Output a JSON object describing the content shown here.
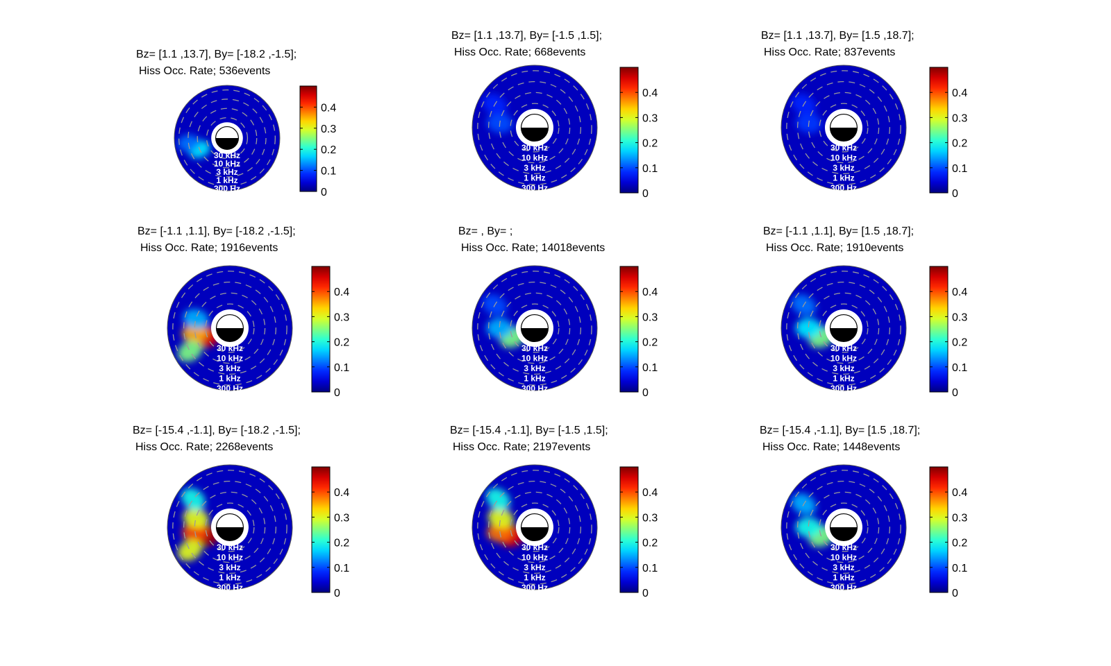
{
  "chart_data": [
    {
      "type": "heatmap",
      "title_line1": "Bz= [1.1 ,13.7], By= [-18.2 ,-1.5];",
      "title_line2": "Hiss Occ. Rate; 536events",
      "radial_labels": [
        "30 kHz",
        "10 kHz",
        "3 kHz",
        "1 kHz",
        "300 Hz"
      ],
      "colorbar": {
        "min": 0,
        "max": 0.5,
        "ticks": [
          "0",
          "0.1",
          "0.2",
          "0.3",
          "0.4"
        ],
        "colormap": "jet"
      },
      "hotspots": [
        {
          "mlt": 4.5,
          "ring": 2,
          "value": 0.18
        },
        {
          "mlt": 5.5,
          "ring": 3,
          "value": 0.12
        }
      ]
    },
    {
      "type": "heatmap",
      "title_line1": "Bz= [1.1 ,13.7], By= [-1.5 ,1.5];",
      "title_line2": "Hiss Occ. Rate; 668events",
      "radial_labels": [
        "30 kHz",
        "10 kHz",
        "3 kHz",
        "1 kHz",
        "300 Hz"
      ],
      "colorbar": {
        "min": 0,
        "max": 0.5,
        "ticks": [
          "0",
          "0.1",
          "0.2",
          "0.3",
          "0.4"
        ],
        "colormap": "jet"
      },
      "hotspots": [
        {
          "mlt": 6.5,
          "ring": 2,
          "value": 0.1
        },
        {
          "mlt": 8,
          "ring": 3,
          "value": 0.08
        }
      ]
    },
    {
      "type": "heatmap",
      "title_line1": "Bz= [1.1 ,13.7], By= [1.5 ,18.7];",
      "title_line2": "Hiss Occ. Rate; 837events",
      "radial_labels": [
        "30 kHz",
        "10 kHz",
        "3 kHz",
        "1 kHz",
        "300 Hz"
      ],
      "colorbar": {
        "min": 0,
        "max": 0.5,
        "ticks": [
          "0",
          "0.1",
          "0.2",
          "0.3",
          "0.4"
        ],
        "colormap": "jet"
      },
      "hotspots": [
        {
          "mlt": 6.5,
          "ring": 2,
          "value": 0.09
        },
        {
          "mlt": 8,
          "ring": 3,
          "value": 0.08
        }
      ]
    },
    {
      "type": "heatmap",
      "title_line1": "Bz= [-1.1 ,1.1], By= [-18.2 ,-1.5];",
      "title_line2": "Hiss Occ. Rate; 1916events",
      "radial_labels": [
        "30 kHz",
        "10 kHz",
        "3 kHz",
        "1 kHz",
        "300 Hz"
      ],
      "colorbar": {
        "min": 0,
        "max": 0.5,
        "ticks": [
          "0",
          "0.1",
          "0.2",
          "0.3",
          "0.4"
        ],
        "colormap": "jet"
      },
      "hotspots": [
        {
          "mlt": 4.5,
          "ring": 1,
          "value": 0.45
        },
        {
          "mlt": 5.5,
          "ring": 2,
          "value": 0.35
        },
        {
          "mlt": 4,
          "ring": 3,
          "value": 0.25
        },
        {
          "mlt": 7,
          "ring": 2,
          "value": 0.15
        }
      ]
    },
    {
      "type": "heatmap",
      "title_line1": "Bz= , By= ;",
      "title_line2": "Hiss Occ. Rate; 14018events",
      "radial_labels": [
        "30 kHz",
        "10 kHz",
        "3 kHz",
        "1 kHz",
        "300 Hz"
      ],
      "colorbar": {
        "min": 0,
        "max": 0.5,
        "ticks": [
          "0",
          "0.1",
          "0.2",
          "0.3",
          "0.4"
        ],
        "colormap": "jet"
      },
      "hotspots": [
        {
          "mlt": 4.5,
          "ring": 1,
          "value": 0.25
        },
        {
          "mlt": 6,
          "ring": 2,
          "value": 0.15
        },
        {
          "mlt": 8,
          "ring": 3,
          "value": 0.1
        }
      ]
    },
    {
      "type": "heatmap",
      "title_line1": "Bz= [-1.1 ,1.1], By= [1.5 ,18.7];",
      "title_line2": "Hiss Occ. Rate; 1910events",
      "radial_labels": [
        "30 kHz",
        "10 kHz",
        "3 kHz",
        "1 kHz",
        "300 Hz"
      ],
      "colorbar": {
        "min": 0,
        "max": 0.5,
        "ticks": [
          "0",
          "0.1",
          "0.2",
          "0.3",
          "0.4"
        ],
        "colormap": "jet"
      },
      "hotspots": [
        {
          "mlt": 4.5,
          "ring": 1,
          "value": 0.25
        },
        {
          "mlt": 6,
          "ring": 2,
          "value": 0.18
        },
        {
          "mlt": 8,
          "ring": 3,
          "value": 0.12
        }
      ]
    },
    {
      "type": "heatmap",
      "title_line1": "Bz= [-15.4 ,-1.1], By= [-18.2 ,-1.5];",
      "title_line2": "Hiss Occ. Rate; 2268events",
      "radial_labels": [
        "30 kHz",
        "10 kHz",
        "3 kHz",
        "1 kHz",
        "300 Hz"
      ],
      "colorbar": {
        "min": 0,
        "max": 0.5,
        "ticks": [
          "0",
          "0.1",
          "0.2",
          "0.3",
          "0.4"
        ],
        "colormap": "jet"
      },
      "hotspots": [
        {
          "mlt": 4.5,
          "ring": 1,
          "value": 0.48
        },
        {
          "mlt": 5.5,
          "ring": 2,
          "value": 0.4
        },
        {
          "mlt": 4,
          "ring": 3,
          "value": 0.3
        },
        {
          "mlt": 7,
          "ring": 2,
          "value": 0.3
        },
        {
          "mlt": 8.5,
          "ring": 3,
          "value": 0.2
        }
      ]
    },
    {
      "type": "heatmap",
      "title_line1": "Bz= [-15.4 ,-1.1], By= [-1.5 ,1.5];",
      "title_line2": "Hiss Occ. Rate; 2197events",
      "radial_labels": [
        "30 kHz",
        "10 kHz",
        "3 kHz",
        "1 kHz",
        "300 Hz"
      ],
      "colorbar": {
        "min": 0,
        "max": 0.5,
        "ticks": [
          "0",
          "0.1",
          "0.2",
          "0.3",
          "0.4"
        ],
        "colormap": "jet"
      },
      "hotspots": [
        {
          "mlt": 4.5,
          "ring": 1,
          "value": 0.45
        },
        {
          "mlt": 5.5,
          "ring": 2,
          "value": 0.38
        },
        {
          "mlt": 7,
          "ring": 2,
          "value": 0.3
        },
        {
          "mlt": 8.5,
          "ring": 3,
          "value": 0.2
        }
      ]
    },
    {
      "type": "heatmap",
      "title_line1": "Bz= [-15.4 ,-1.1], By= [1.5 ,18.7];",
      "title_line2": "Hiss Occ. Rate; 1448events",
      "radial_labels": [
        "30 kHz",
        "10 kHz",
        "3 kHz",
        "1 kHz",
        "300 Hz"
      ],
      "colorbar": {
        "min": 0,
        "max": 0.5,
        "ticks": [
          "0",
          "0.1",
          "0.2",
          "0.3",
          "0.4"
        ],
        "colormap": "jet"
      },
      "hotspots": [
        {
          "mlt": 4.5,
          "ring": 1,
          "value": 0.25
        },
        {
          "mlt": 6,
          "ring": 2,
          "value": 0.2
        },
        {
          "mlt": 8,
          "ring": 3,
          "value": 0.15
        }
      ]
    }
  ]
}
